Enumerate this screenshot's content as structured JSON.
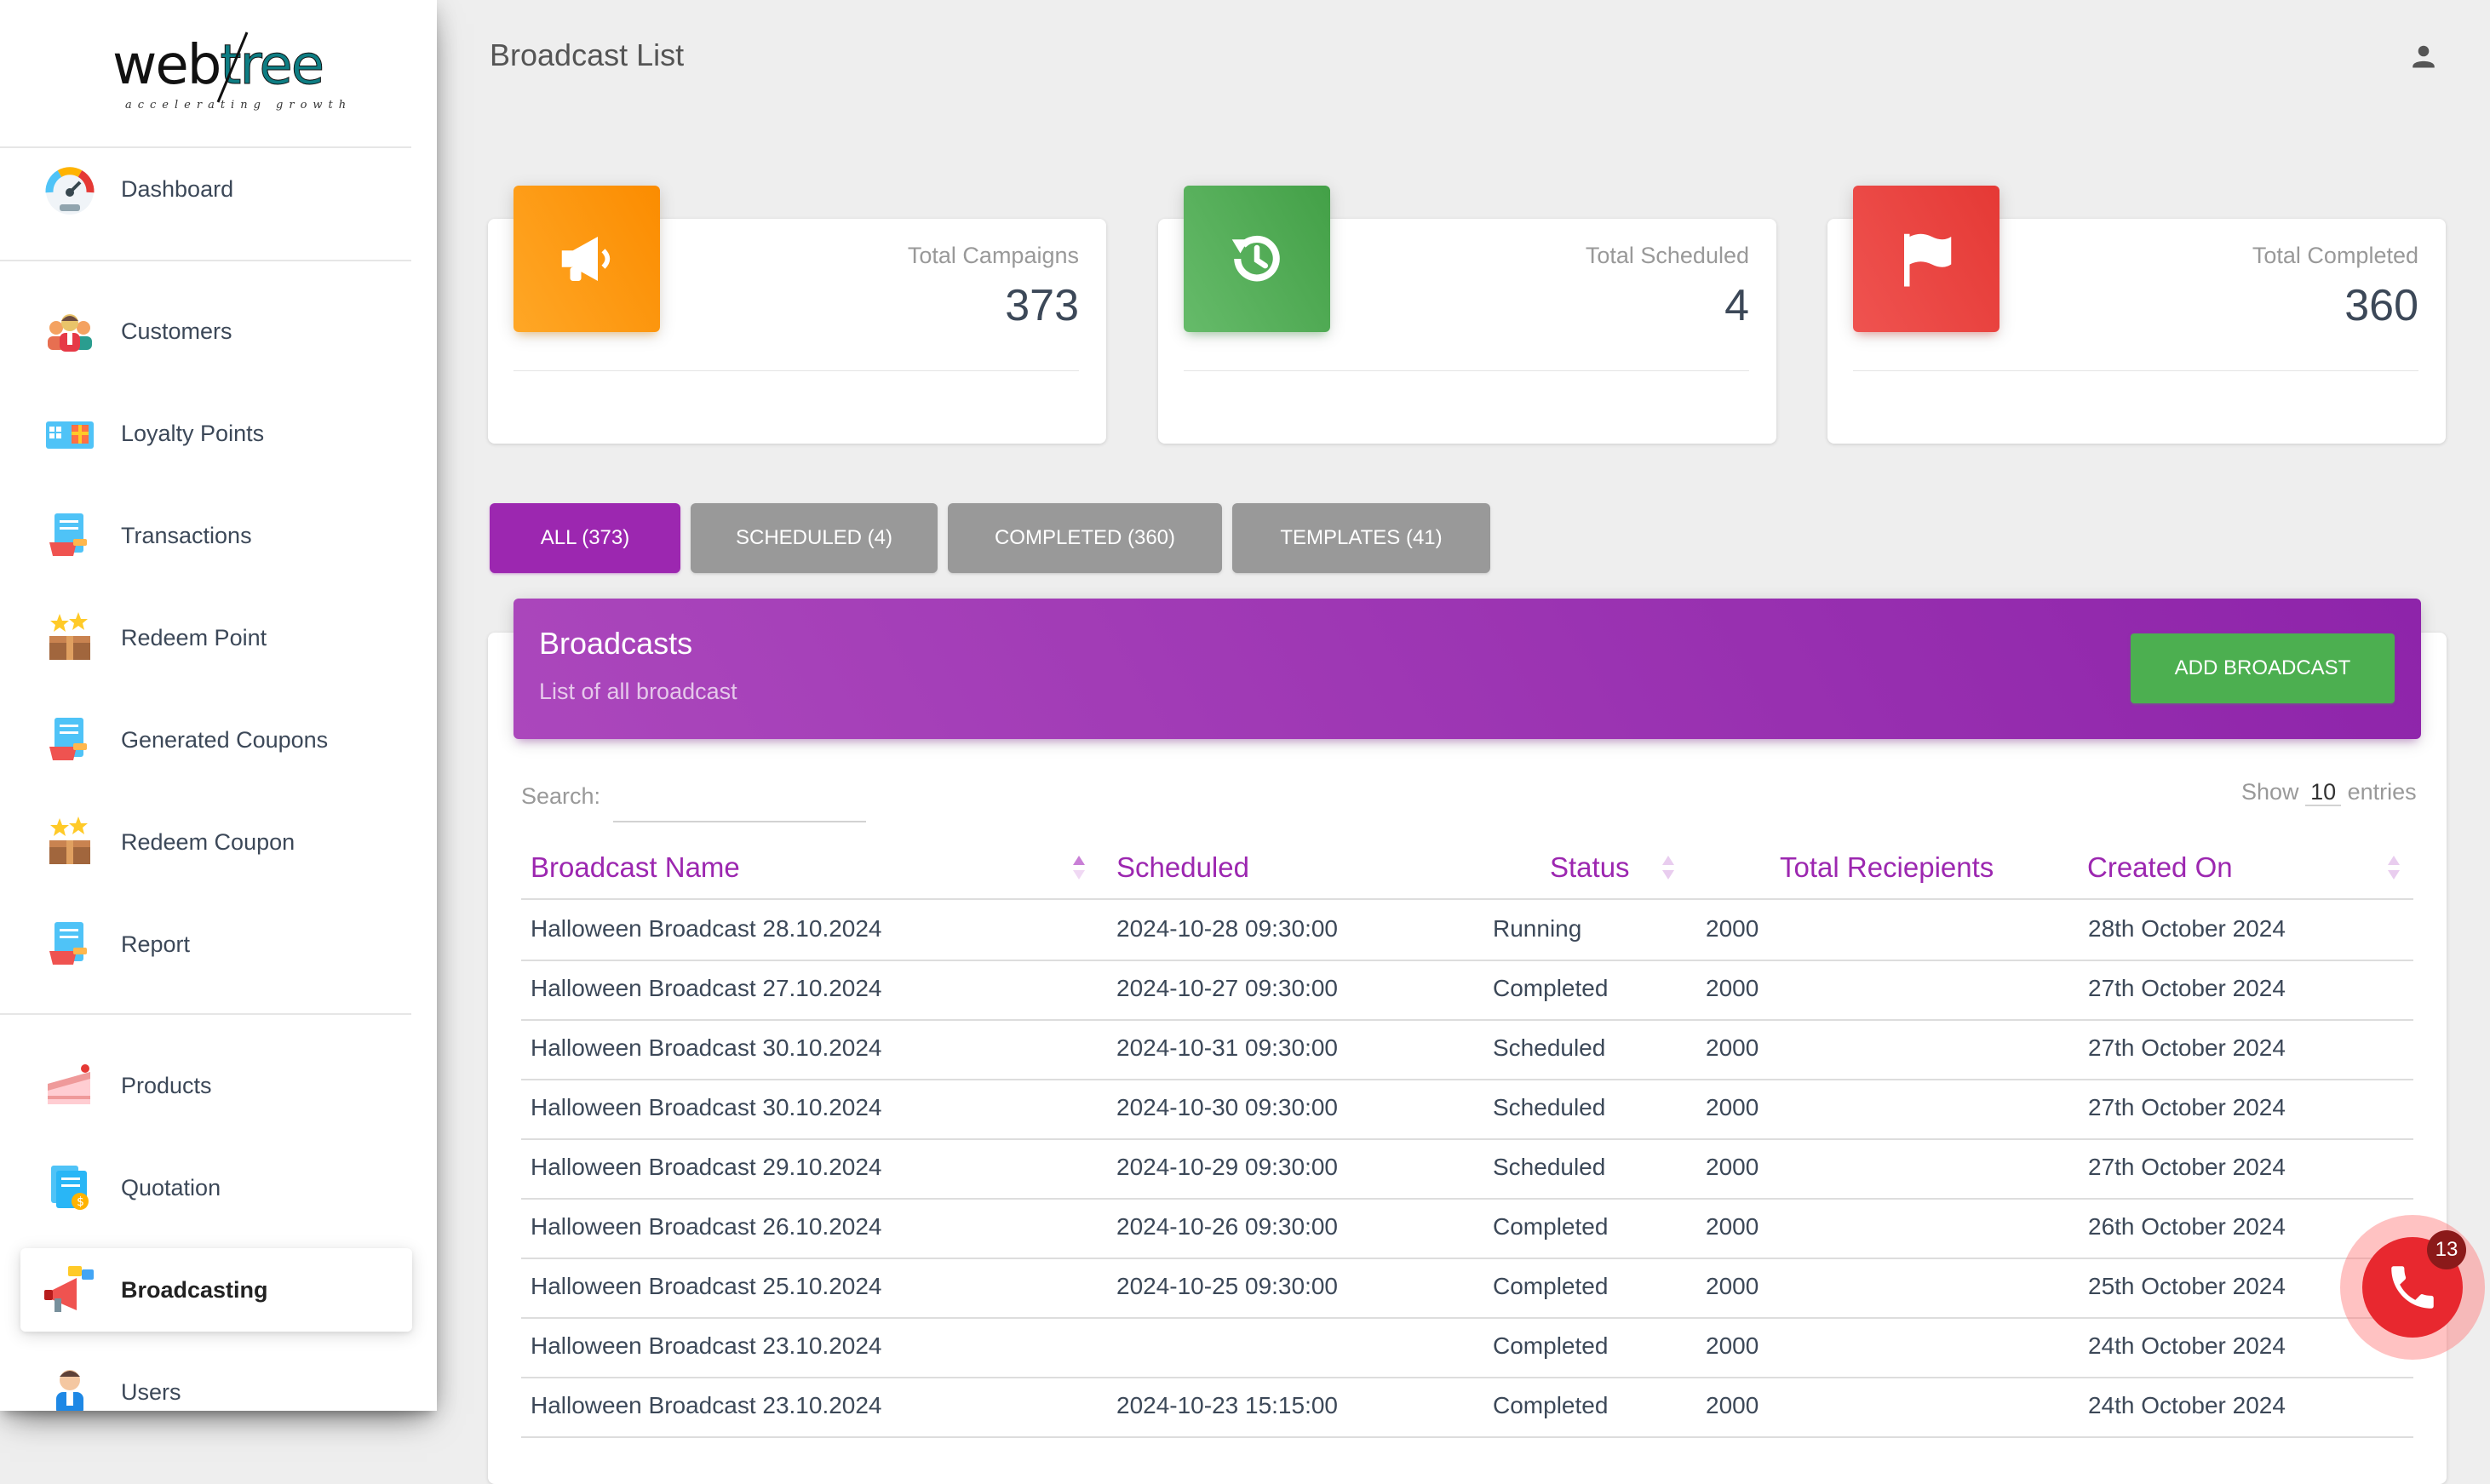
{
  "sidebar": {
    "logo": {
      "part1": "web",
      "part2": "tree",
      "tagline": "accelerating growth"
    },
    "items": [
      {
        "label": "Dashboard",
        "icon": "speedometer-icon"
      },
      {
        "label": "Customers",
        "icon": "customers-group-icon"
      },
      {
        "label": "Loyalty Points",
        "icon": "gift-card-icon"
      },
      {
        "label": "Transactions",
        "icon": "document-transactions-icon"
      },
      {
        "label": "Redeem Point",
        "icon": "box-stars-icon"
      },
      {
        "label": "Generated Coupons",
        "icon": "document-coupon-icon"
      },
      {
        "label": "Redeem Coupon",
        "icon": "box-stars-icon"
      },
      {
        "label": "Report",
        "icon": "document-report-icon"
      },
      {
        "label": "Products",
        "icon": "cake-slice-icon"
      },
      {
        "label": "Quotation",
        "icon": "quotation-document-icon"
      },
      {
        "label": "Broadcasting",
        "icon": "megaphone-icon",
        "active": true
      },
      {
        "label": "Users",
        "icon": "user-person-icon"
      }
    ]
  },
  "header": {
    "title": "Broadcast List",
    "user_icon": "person-icon"
  },
  "stats": [
    {
      "label": "Total Campaigns",
      "value": "373",
      "icon": "megaphone-icon",
      "color": "#fb8c00"
    },
    {
      "label": "Total Scheduled",
      "value": "4",
      "icon": "history-icon",
      "color": "#43a047"
    },
    {
      "label": "Total Completed",
      "value": "360",
      "icon": "flag-icon",
      "color": "#e53935"
    }
  ],
  "tabs": [
    {
      "label": "ALL (373)",
      "active": true
    },
    {
      "label": "SCHEDULED (4)"
    },
    {
      "label": "COMPLETED (360)"
    },
    {
      "label": "TEMPLATES (41)"
    }
  ],
  "card": {
    "title": "Broadcasts",
    "subtitle": "List of all broadcast",
    "add_button": "ADD BROADCAST",
    "accent": "#9c27b0"
  },
  "table_controls": {
    "search_label": "Search:",
    "search_value": "",
    "show_prefix": "Show",
    "show_value": "10",
    "show_suffix": "entries"
  },
  "table": {
    "columns": [
      "Broadcast Name",
      "Scheduled",
      "Status",
      "Total Reciepients",
      "Created On"
    ],
    "rows": [
      [
        "Halloween Broadcast 28.10.2024",
        "2024-10-28 09:30:00",
        "Running",
        "2000",
        "28th October 2024"
      ],
      [
        "Halloween Broadcast 27.10.2024",
        "2024-10-27 09:30:00",
        "Completed",
        "2000",
        "27th October 2024"
      ],
      [
        "Halloween Broadcast 30.10.2024",
        "2024-10-31 09:30:00",
        "Scheduled",
        "2000",
        "27th October 2024"
      ],
      [
        "Halloween Broadcast 30.10.2024",
        "2024-10-30 09:30:00",
        "Scheduled",
        "2000",
        "27th October 2024"
      ],
      [
        "Halloween Broadcast 29.10.2024",
        "2024-10-29 09:30:00",
        "Scheduled",
        "2000",
        "27th October 2024"
      ],
      [
        "Halloween Broadcast 26.10.2024",
        "2024-10-26 09:30:00",
        "Completed",
        "2000",
        "26th October 2024"
      ],
      [
        "Halloween Broadcast 25.10.2024",
        "2024-10-25 09:30:00",
        "Completed",
        "2000",
        "25th October 2024"
      ],
      [
        "Halloween Broadcast 23.10.2024",
        "",
        "Completed",
        "2000",
        "24th October 2024"
      ],
      [
        "Halloween Broadcast 23.10.2024",
        "2024-10-23 15:15:00",
        "Completed",
        "2000",
        "24th October 2024"
      ]
    ]
  },
  "call_widget": {
    "badge": "13",
    "icon": "phone-icon"
  }
}
